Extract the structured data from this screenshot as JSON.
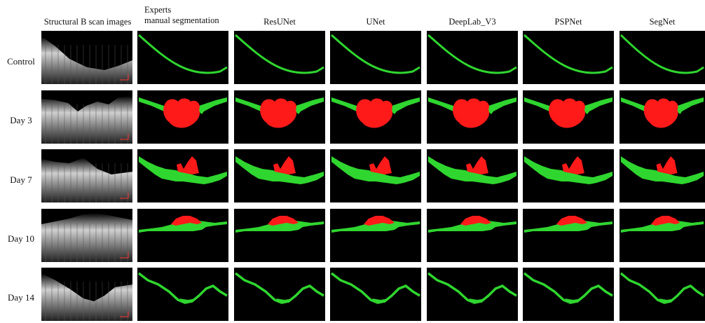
{
  "columns": [
    {
      "label": "Structural B scan images"
    },
    {
      "label_line1": "Experts",
      "label_line2": "manual segmentation"
    },
    {
      "label": "ResUNet"
    },
    {
      "label": "UNet"
    },
    {
      "label": "DeepLab_V3"
    },
    {
      "label": "PSPNet"
    },
    {
      "label": "SegNet"
    }
  ],
  "rows": [
    {
      "label": "Control"
    },
    {
      "label": "Day 3"
    },
    {
      "label": "Day 7"
    },
    {
      "label": "Day 10"
    },
    {
      "label": "Day 14"
    }
  ],
  "colors": {
    "background": "#000000",
    "green": "#2fd62f",
    "red": "#ff1a1a",
    "scan": "#bdbdbd",
    "scalebar": "#ff3333"
  }
}
